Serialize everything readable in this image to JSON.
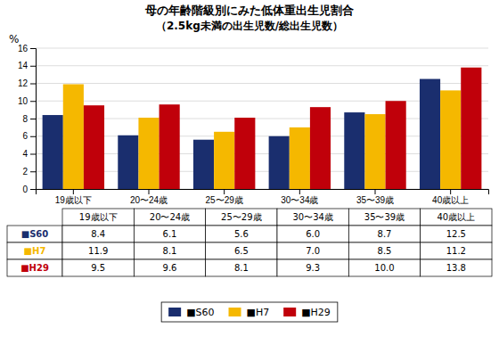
{
  "chart_data": {
    "type": "bar",
    "title": "母の年齢階級別にみた低体重出生児割合",
    "subtitle": "（2.5kg未満の出生児数/総出生児数）",
    "ylabel": "%",
    "categories": [
      "19歳以下",
      "20〜24歳",
      "25〜29歳",
      "30〜34歳",
      "35〜39歳",
      "40歳以上"
    ],
    "series": [
      {
        "name": "■S60",
        "color": "#1a2e6e",
        "values": [
          8.4,
          6.1,
          5.6,
          6.0,
          8.7,
          12.5
        ],
        "value_labels": [
          "8.4",
          "6.1",
          "5.6",
          "6.0",
          "8.7",
          "12.5"
        ]
      },
      {
        "name": "■H7",
        "color": "#f5b800",
        "values": [
          11.9,
          8.1,
          6.5,
          7.0,
          8.5,
          11.2
        ],
        "value_labels": [
          "11.9",
          "8.1",
          "6.5",
          "7.0",
          "8.5",
          "11.2"
        ]
      },
      {
        "name": "■H29",
        "color": "#c0000a",
        "values": [
          9.5,
          9.6,
          8.1,
          9.3,
          10.0,
          13.8
        ],
        "value_labels": [
          "9.5",
          "9.6",
          "8.1",
          "9.3",
          "10.0",
          "13.8"
        ]
      }
    ],
    "ylim": [
      0,
      16
    ],
    "yticks": [
      0,
      2,
      4,
      6,
      8,
      10,
      12,
      14,
      16
    ],
    "grid": true,
    "legend": "bottom"
  }
}
